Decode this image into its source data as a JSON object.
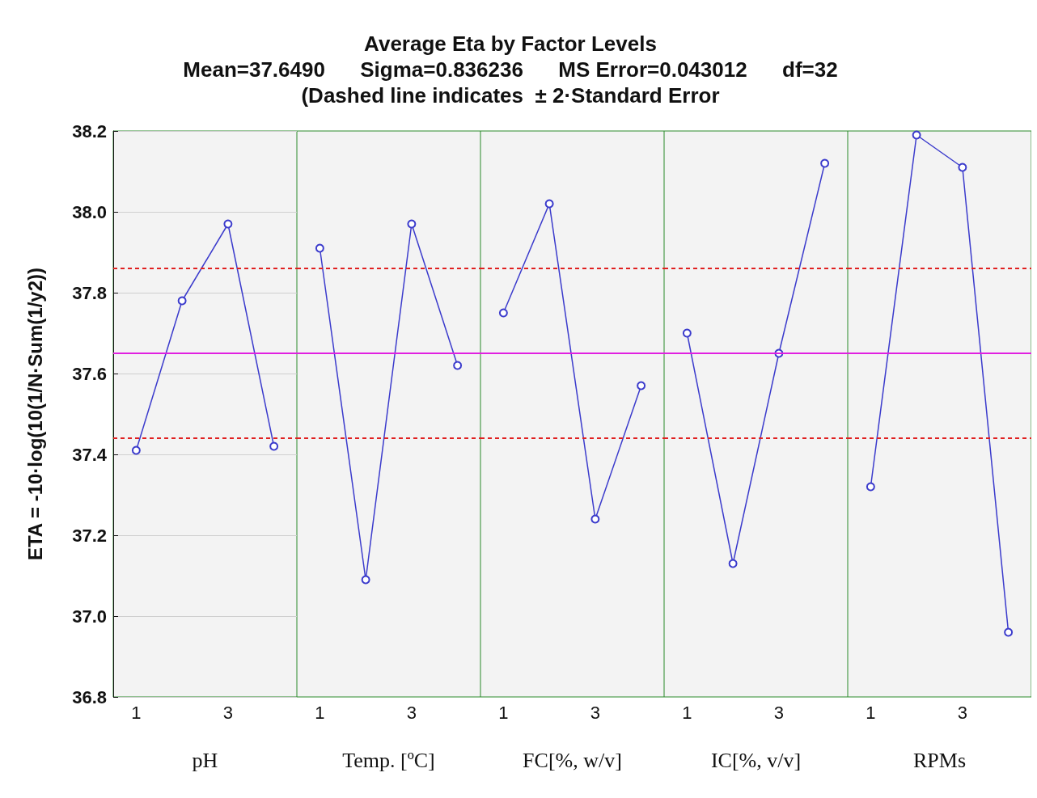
{
  "chart_data": [
    {
      "type": "other",
      "title": "Average Eta by Factor Levels",
      "subtitle": "Mean=37.6490      Sigma=0.836236      MS Error=0.043012      df=32\n(Dashed line indicates  ± 2·Standard Error"
    },
    {
      "type": "line",
      "ylabel": "ETA = -10·log(10(1/N·Sum(1/y2))",
      "xlabel": "pH",
      "categories": [
        "1",
        null,
        "3",
        null
      ],
      "series": [
        {
          "color": "#3b3bcc",
          "values": [
            37.41,
            37.78,
            37.97,
            37.42
          ]
        }
      ],
      "ylim": [
        36.8,
        38.2
      ],
      "yticks": [
        36.8,
        37.2,
        37.4,
        37.6,
        37.8,
        {
          "value": 37,
          "label": "37.0"
        },
        {
          "value": 38,
          "label": "38.0"
        },
        38.2
      ],
      "grid": "y",
      "marker": "circle",
      "ref_lines": [
        {
          "axis": "y",
          "value": 37.649,
          "color": "#e020e0",
          "line_style": "solid"
        },
        {
          "axis": "y",
          "value": 37.86,
          "color": "#e02020",
          "line_style": "dashed"
        },
        {
          "axis": "y",
          "value": 37.44,
          "color": "#e02020",
          "line_style": "dashed"
        }
      ]
    },
    {
      "type": "line",
      "xlabel": "Temp. [ºC]",
      "categories": [
        "1",
        null,
        "3",
        null
      ],
      "series": [
        {
          "color": "#3b3bcc",
          "values": [
            37.91,
            37.09,
            37.97,
            37.62
          ]
        }
      ],
      "ylim": [
        36.8,
        38.2
      ],
      "tick_labels": "x",
      "grid": "y",
      "marker": "circle",
      "ref_lines": [
        {
          "axis": "y",
          "value": 37.649,
          "color": "#e020e0",
          "line_style": "solid"
        },
        {
          "axis": "y",
          "value": 37.86,
          "color": "#e02020",
          "line_style": "dashed"
        },
        {
          "axis": "y",
          "value": 37.44,
          "color": "#e02020",
          "line_style": "dashed"
        }
      ]
    },
    {
      "type": "line",
      "xlabel": "FC[%, w/v]",
      "categories": [
        "1",
        null,
        "3",
        null
      ],
      "series": [
        {
          "color": "#3b3bcc",
          "values": [
            37.75,
            38.02,
            37.24,
            37.57
          ]
        }
      ],
      "ylim": [
        36.8,
        38.2
      ],
      "tick_labels": "x",
      "grid": "y",
      "marker": "circle",
      "ref_lines": [
        {
          "axis": "y",
          "value": 37.649,
          "color": "#e020e0",
          "line_style": "solid"
        },
        {
          "axis": "y",
          "value": 37.86,
          "color": "#e02020",
          "line_style": "dashed"
        },
        {
          "axis": "y",
          "value": 37.44,
          "color": "#e02020",
          "line_style": "dashed"
        }
      ]
    },
    {
      "type": "line",
      "xlabel": "IC[%, v/v]",
      "categories": [
        "1",
        null,
        "3",
        null
      ],
      "series": [
        {
          "color": "#3b3bcc",
          "values": [
            37.7,
            37.13,
            37.65,
            38.12
          ]
        }
      ],
      "ylim": [
        36.8,
        38.2
      ],
      "tick_labels": "x",
      "grid": "y",
      "marker": "circle",
      "ref_lines": [
        {
          "axis": "y",
          "value": 37.649,
          "color": "#e020e0",
          "line_style": "solid"
        },
        {
          "axis": "y",
          "value": 37.86,
          "color": "#e02020",
          "line_style": "dashed"
        },
        {
          "axis": "y",
          "value": 37.44,
          "color": "#e02020",
          "line_style": "dashed"
        }
      ]
    },
    {
      "type": "line",
      "xlabel": "RPMs",
      "categories": [
        "1",
        null,
        "3",
        null
      ],
      "series": [
        {
          "color": "#3b3bcc",
          "values": [
            37.32,
            38.19,
            38.11,
            36.96
          ]
        }
      ],
      "ylim": [
        36.8,
        38.2
      ],
      "tick_labels": "x",
      "grid": "y",
      "marker": "circle",
      "ref_lines": [
        {
          "axis": "y",
          "value": 37.649,
          "color": "#e020e0",
          "line_style": "solid"
        },
        {
          "axis": "y",
          "value": 37.86,
          "color": "#e02020",
          "line_style": "dashed"
        },
        {
          "axis": "y",
          "value": 37.44,
          "color": "#e02020",
          "line_style": "dashed"
        }
      ]
    }
  ]
}
